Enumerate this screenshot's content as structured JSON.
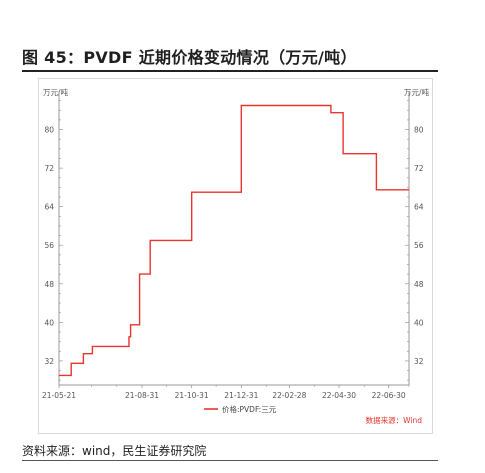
{
  "figure": {
    "title": "图 45：PVDF 近期价格变动情况（万元/吨）",
    "source_note": "资料来源：wind，民生证券研究院"
  },
  "chart_data": {
    "type": "line",
    "step": true,
    "unit_left": "万元/吨",
    "unit_right": "万元/吨",
    "x_ticks": [
      "21-05-21",
      "21-08-31",
      "21-10-31",
      "21-12-31",
      "22-02-28",
      "22-04-30",
      "22-06-30"
    ],
    "y_ticks": [
      32,
      40,
      48,
      56,
      64,
      72,
      80
    ],
    "ylim": [
      27,
      88
    ],
    "grid": false,
    "legend": {
      "position": "bottom",
      "entries": [
        "价格:PVDF:三元"
      ]
    },
    "data_source": "数据来源：Wind",
    "series": [
      {
        "name": "价格:PVDF:三元",
        "color": "#e8352e",
        "points": [
          [
            "2021-05-21",
            29
          ],
          [
            "2021-06-05",
            29
          ],
          [
            "2021-06-05",
            31.5
          ],
          [
            "2021-06-20",
            31.5
          ],
          [
            "2021-06-20",
            33.5
          ],
          [
            "2021-07-01",
            33.5
          ],
          [
            "2021-07-01",
            35
          ],
          [
            "2021-08-15",
            35
          ],
          [
            "2021-08-15",
            37
          ],
          [
            "2021-08-17",
            37
          ],
          [
            "2021-08-17",
            39.5
          ],
          [
            "2021-08-28",
            39.5
          ],
          [
            "2021-08-28",
            50
          ],
          [
            "2021-09-10",
            50
          ],
          [
            "2021-09-10",
            57
          ],
          [
            "2021-10-31",
            57
          ],
          [
            "2021-10-31",
            67
          ],
          [
            "2021-12-31",
            67
          ],
          [
            "2021-12-31",
            85
          ],
          [
            "2022-04-20",
            85
          ],
          [
            "2022-04-20",
            83.5
          ],
          [
            "2022-05-05",
            83.5
          ],
          [
            "2022-05-05",
            75
          ],
          [
            "2022-06-15",
            75
          ],
          [
            "2022-06-15",
            67.5
          ],
          [
            "2022-07-25",
            67.5
          ]
        ]
      }
    ]
  }
}
